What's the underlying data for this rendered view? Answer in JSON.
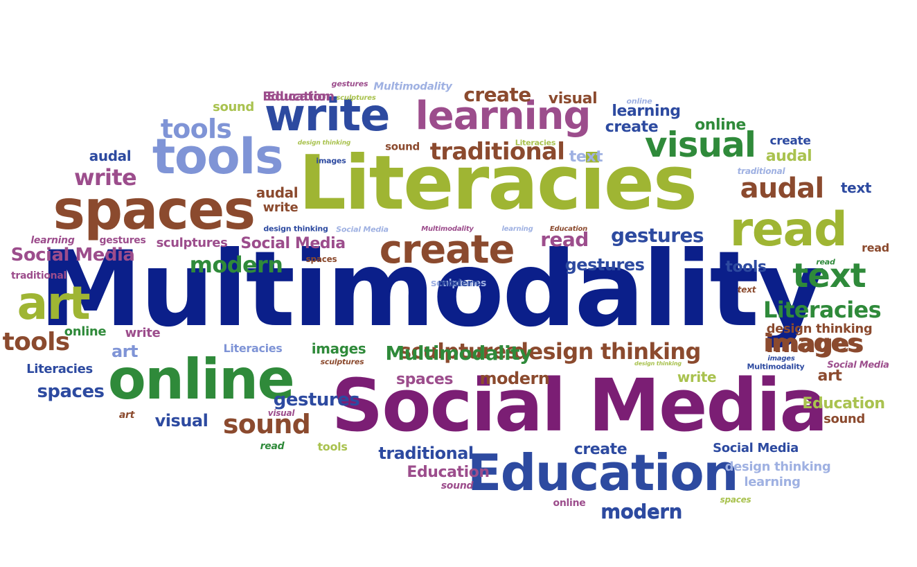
{
  "palette": {
    "navy": "#0b1f8a",
    "purple": "#7b1e74",
    "olive": "#9fb533",
    "brown": "#8b4a2e",
    "green": "#2f8a3a",
    "periwinkle": "#7f94d6",
    "blue": "#2d4aa0",
    "plum": "#9c4d8c",
    "lightgreen": "#a9c24f",
    "lightblue": "#9fb1e2"
  },
  "words": [
    {
      "text": "Multimodality",
      "color": "navy"
    },
    {
      "text": "Social Media",
      "color": "purple"
    },
    {
      "text": "Literacies",
      "color": "olive"
    },
    {
      "text": "online",
      "color": "green"
    },
    {
      "text": "Education",
      "color": "blue"
    },
    {
      "text": "spaces",
      "color": "brown"
    },
    {
      "text": "tools",
      "color": "periwinkle"
    },
    {
      "text": "write",
      "color": "blue"
    },
    {
      "text": "learning",
      "color": "plum"
    },
    {
      "text": "read",
      "color": "olive"
    },
    {
      "text": "create",
      "color": "brown"
    },
    {
      "text": "art",
      "color": "olive"
    },
    {
      "text": "visual",
      "color": "green"
    },
    {
      "text": "audal",
      "color": "brown"
    },
    {
      "text": "text",
      "color": "green"
    },
    {
      "text": "sound",
      "color": "brown"
    },
    {
      "text": "images",
      "color": "brown"
    },
    {
      "text": "traditional",
      "color": "brown"
    },
    {
      "text": "design thinking",
      "color": "brown"
    },
    {
      "text": "sculptures",
      "color": "brown"
    },
    {
      "text": "gestures",
      "color": "blue"
    },
    {
      "text": "Social Media",
      "color": "plum"
    },
    {
      "text": "modern",
      "color": "blue"
    },
    {
      "text": "Education",
      "color": "plum"
    },
    {
      "text": "tools",
      "color": "periwinkle"
    },
    {
      "text": "create",
      "color": "brown"
    },
    {
      "text": "visual",
      "color": "brown"
    },
    {
      "text": "sound",
      "color": "lightgreen"
    },
    {
      "text": "Education",
      "color": "plum"
    },
    {
      "text": "gestures",
      "color": "plum"
    },
    {
      "text": "Multimodality",
      "color": "lightblue"
    },
    {
      "text": "sculptures",
      "color": "lightgreen"
    },
    {
      "text": "online",
      "color": "lightblue"
    },
    {
      "text": "learning",
      "color": "blue"
    },
    {
      "text": "create",
      "color": "blue"
    },
    {
      "text": "online",
      "color": "green"
    },
    {
      "text": "create",
      "color": "blue"
    },
    {
      "text": "audal",
      "color": "lightgreen"
    },
    {
      "text": "text",
      "color": "lightblue"
    },
    {
      "text": "traditional",
      "color": "lightblue"
    },
    {
      "text": "text",
      "color": "blue"
    },
    {
      "text": "audal",
      "color": "blue"
    },
    {
      "text": "write",
      "color": "plum"
    },
    {
      "text": "design thinking",
      "color": "lightgreen"
    },
    {
      "text": "sound",
      "color": "brown"
    },
    {
      "text": "Literacies",
      "color": "lightgreen"
    },
    {
      "text": "images",
      "color": "blue"
    },
    {
      "text": "audal",
      "color": "brown"
    },
    {
      "text": "write",
      "color": "brown"
    },
    {
      "text": "design thinking",
      "color": "blue"
    },
    {
      "text": "Social Media",
      "color": "lightblue"
    },
    {
      "text": "Multimodality",
      "color": "plum"
    },
    {
      "text": "learning",
      "color": "lightblue"
    },
    {
      "text": "Education",
      "color": "brown"
    },
    {
      "text": "learning",
      "color": "plum"
    },
    {
      "text": "gestures",
      "color": "plum"
    },
    {
      "text": "sculptures",
      "color": "plum"
    },
    {
      "text": "Social Media",
      "color": "plum"
    },
    {
      "text": "read",
      "color": "brown"
    },
    {
      "text": "gestures",
      "color": "blue"
    },
    {
      "text": "read",
      "color": "plum"
    },
    {
      "text": "spaces",
      "color": "brown"
    },
    {
      "text": "modern",
      "color": "green"
    },
    {
      "text": "text",
      "color": "brown"
    },
    {
      "text": "tools",
      "color": "blue"
    },
    {
      "text": "read",
      "color": "green"
    },
    {
      "text": "traditional",
      "color": "plum"
    },
    {
      "text": "Literacies",
      "color": "green"
    },
    {
      "text": "online",
      "color": "green"
    },
    {
      "text": "write",
      "color": "plum"
    },
    {
      "text": "tools",
      "color": "brown"
    },
    {
      "text": "art",
      "color": "periwinkle"
    },
    {
      "text": "Literacies",
      "color": "periwinkle"
    },
    {
      "text": "images",
      "color": "green"
    },
    {
      "text": "Multimodality",
      "color": "green"
    },
    {
      "text": "sculptures",
      "color": "brown"
    },
    {
      "text": "design thinking",
      "color": "brown"
    },
    {
      "text": "Literacies",
      "color": "blue"
    },
    {
      "text": "images",
      "color": "brown"
    },
    {
      "text": "images",
      "color": "blue"
    },
    {
      "text": "design thinking",
      "color": "lightgreen"
    },
    {
      "text": "Multimodality",
      "color": "blue"
    },
    {
      "text": "Social Media",
      "color": "plum"
    },
    {
      "text": "spaces",
      "color": "plum"
    },
    {
      "text": "art",
      "color": "brown"
    },
    {
      "text": "modern",
      "color": "brown"
    },
    {
      "text": "write",
      "color": "lightgreen"
    },
    {
      "text": "spaces",
      "color": "blue"
    },
    {
      "text": "gestures",
      "color": "blue"
    },
    {
      "text": "art",
      "color": "brown"
    },
    {
      "text": "visual",
      "color": "blue"
    },
    {
      "text": "visual",
      "color": "plum"
    },
    {
      "text": "Education",
      "color": "lightgreen"
    },
    {
      "text": "sound",
      "color": "brown"
    },
    {
      "text": "read",
      "color": "green"
    },
    {
      "text": "tools",
      "color": "lightgreen"
    },
    {
      "text": "create",
      "color": "blue"
    },
    {
      "text": "Social Media",
      "color": "blue"
    },
    {
      "text": "traditional",
      "color": "blue"
    },
    {
      "text": "design thinking",
      "color": "lightblue"
    },
    {
      "text": "Education",
      "color": "plum"
    },
    {
      "text": "learning",
      "color": "lightblue"
    },
    {
      "text": "sound",
      "color": "plum"
    },
    {
      "text": "online",
      "color": "plum"
    },
    {
      "text": "spaces",
      "color": "lightgreen"
    },
    {
      "text": "modern",
      "color": "blue"
    },
    {
      "text": "sculptures",
      "color": "lightblue"
    },
    {
      "text": "modern",
      "color": "blue"
    }
  ]
}
